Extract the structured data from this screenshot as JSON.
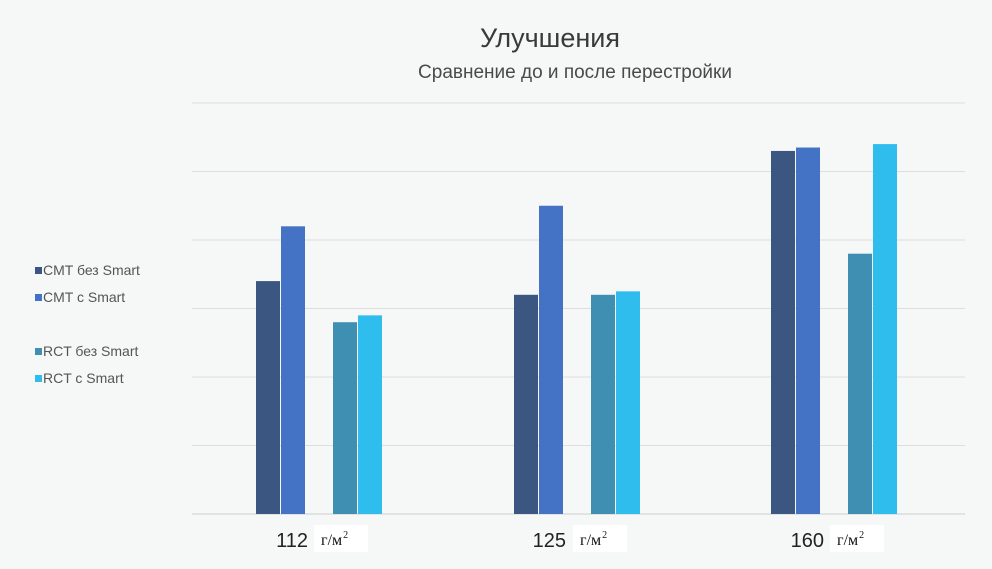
{
  "chart_data": {
    "type": "bar",
    "title": "Улучшения",
    "subtitle": "Сравнение до и после перестройки",
    "categories": [
      "112",
      "125",
      "160"
    ],
    "category_unit": "г/м",
    "category_unit_sup": "2",
    "series": [
      {
        "name": "CMT без Smart",
        "values": [
          3.4,
          3.2,
          5.3
        ],
        "color": "#3a5681"
      },
      {
        "name": "CMT с Smart",
        "values": [
          4.2,
          4.5,
          5.35
        ],
        "color": "#4472c4"
      },
      {
        "name": "RCT без Smart",
        "values": [
          2.8,
          3.2,
          3.8
        ],
        "color": "#3f8fb2"
      },
      {
        "name": "RCT с Smart",
        "values": [
          2.9,
          3.25,
          5.4
        ],
        "color": "#2fbdee"
      }
    ],
    "ylim": [
      0,
      6
    ],
    "grid": true,
    "legend_position": "left"
  }
}
